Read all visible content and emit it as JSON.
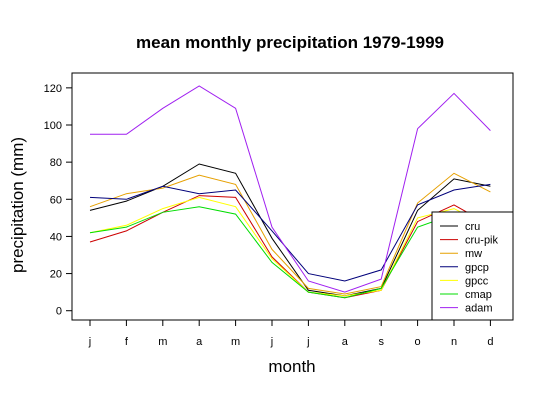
{
  "chart_data": {
    "type": "line",
    "title": "mean monthly precipitation 1979-1999",
    "xlabel": "month",
    "ylabel": "precipitation (mm)",
    "categories": [
      "j",
      "f",
      "m",
      "a",
      "m",
      "j",
      "j",
      "a",
      "s",
      "o",
      "n",
      "d"
    ],
    "ylim": [
      -5,
      128
    ],
    "yticks": [
      0,
      20,
      40,
      60,
      80,
      100,
      120
    ],
    "grid": false,
    "legend_position": "bottom-right",
    "series": [
      {
        "name": "cru",
        "color": "#000000",
        "values": [
          54,
          59,
          67,
          79,
          74,
          39,
          11,
          8,
          12,
          54,
          71,
          67
        ]
      },
      {
        "name": "cru-pik",
        "color": "#cc0000",
        "values": [
          37,
          43,
          53,
          62,
          61,
          29,
          10,
          7,
          11,
          48,
          57,
          46
        ]
      },
      {
        "name": "mw",
        "color": "#e6a000",
        "values": [
          56,
          63,
          66,
          73,
          68,
          33,
          12,
          9,
          13,
          58,
          74,
          64
        ]
      },
      {
        "name": "gpcp",
        "color": "#00007a",
        "values": [
          61,
          60,
          67,
          63,
          65,
          43,
          20,
          16,
          22,
          57,
          65,
          68
        ]
      },
      {
        "name": "gpcc",
        "color": "#ffff00",
        "values": [
          42,
          46,
          55,
          61,
          56,
          28,
          10,
          8,
          11,
          50,
          55,
          45
        ]
      },
      {
        "name": "cmap",
        "color": "#00dd00",
        "values": [
          42,
          45,
          53,
          56,
          52,
          26,
          10,
          7,
          12,
          45,
          52,
          44
        ]
      },
      {
        "name": "adam",
        "color": "#a020f0",
        "values": [
          95,
          95,
          109,
          121,
          109,
          45,
          16,
          10,
          17,
          98,
          117,
          97
        ]
      }
    ]
  }
}
